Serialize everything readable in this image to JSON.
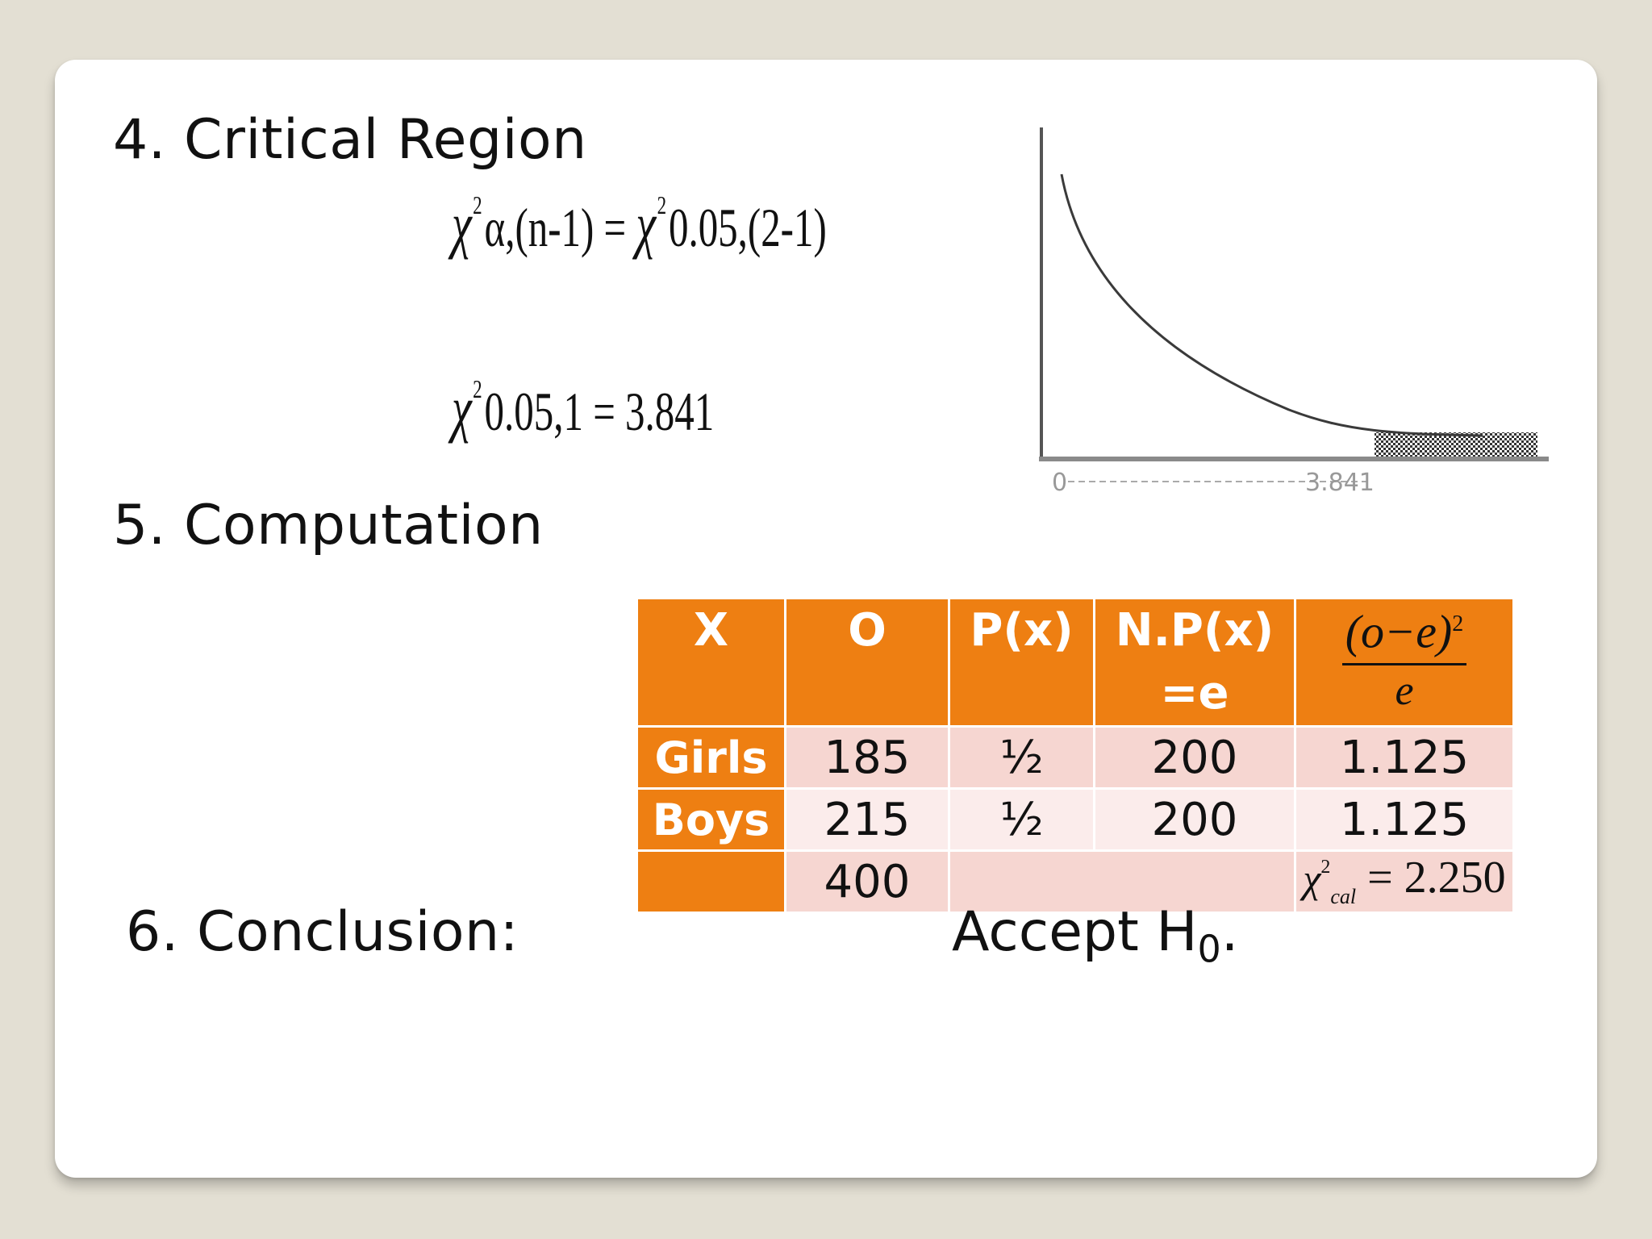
{
  "slide": {
    "section4": {
      "title": "4. Critical Region"
    },
    "formula1": {
      "chi": "χ",
      "sup1": "2",
      "mid": "α,(n-1) = ",
      "chi2": "χ",
      "sup2": "2",
      "tail": "0.05,(2-1)"
    },
    "formula2": {
      "chi": "χ",
      "sup": "2",
      "body": "0.05,1 = 3.841"
    },
    "chart_data": {
      "type": "line",
      "description_labels": [
        "0",
        "3.841"
      ],
      "x_tick_labels": [
        "0",
        "3.841"
      ],
      "critical_value": 3.841,
      "shaded_region": "right tail beyond 3.841",
      "title": "",
      "xlabel": "",
      "ylabel": ""
    },
    "section5": {
      "title": "5. Computation"
    },
    "table": {
      "headers": [
        "X",
        "O",
        "P(x)",
        "N.P(x)",
        "=e"
      ],
      "fraction": {
        "numerator": "(o−e)",
        "exponent": "2",
        "denominator": "e"
      },
      "rows": [
        {
          "label": "Girls",
          "o": "185",
          "p": "½",
          "e": "200",
          "chi": "1.125"
        },
        {
          "label": "Boys",
          "o": "215",
          "p": "½",
          "e": "200",
          "chi": "1.125"
        }
      ],
      "total": {
        "o": "400",
        "chi_symbol": "χ",
        "chi_sup": "2",
        "chi_sub": "cal",
        "chi_value": "= 2.250"
      }
    },
    "section6": {
      "title": "6. Conclusion:",
      "value": "Accept H",
      "value_sub": "0",
      "value_end": "."
    }
  }
}
